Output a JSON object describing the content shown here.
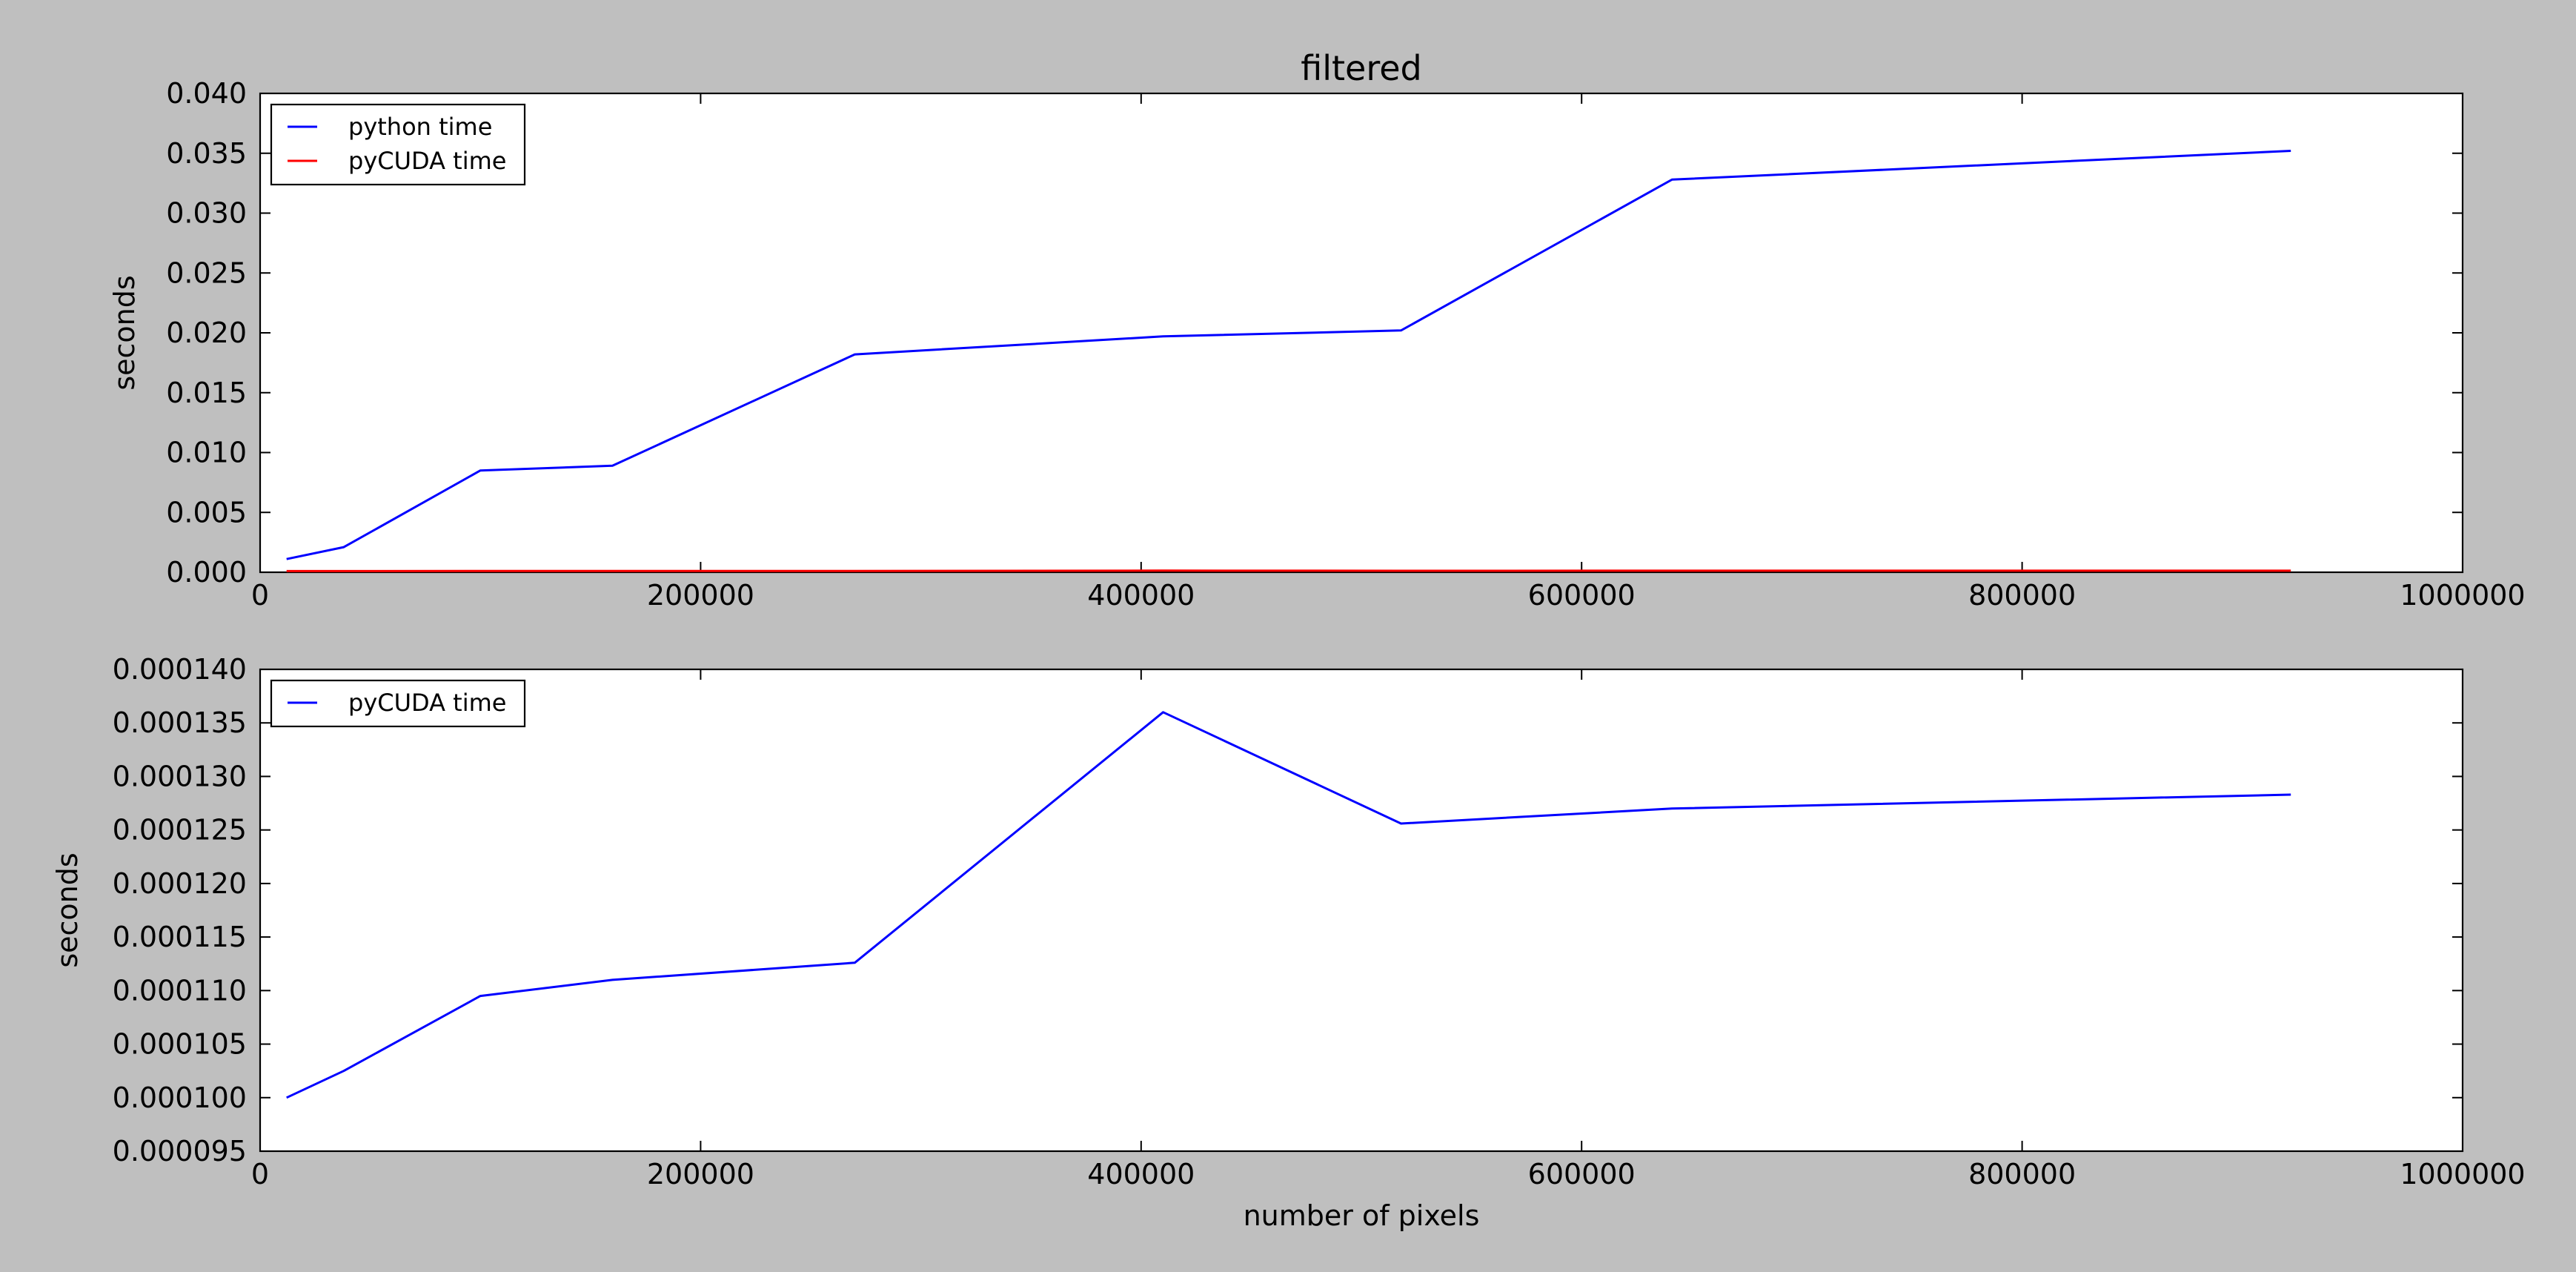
{
  "chart_data": [
    {
      "type": "line",
      "title": "filtered",
      "xlabel": "",
      "ylabel": "seconds",
      "xlim": [
        0,
        1000000
      ],
      "ylim": [
        0,
        0.04
      ],
      "xticks": [
        "0",
        "200000",
        "400000",
        "600000",
        "800000",
        "1000000"
      ],
      "yticks": [
        "0.000",
        "0.005",
        "0.010",
        "0.015",
        "0.020",
        "0.025",
        "0.030",
        "0.035",
        "0.040"
      ],
      "legend_position": "upper-left",
      "series": [
        {
          "name": "python time",
          "color": "#0000ff",
          "x": [
            12000,
            38000,
            100000,
            160000,
            270000,
            410000,
            518000,
            641000,
            922000
          ],
          "y": [
            0.0011,
            0.0021,
            0.0085,
            0.0089,
            0.0182,
            0.0197,
            0.0202,
            0.0328,
            0.0352
          ]
        },
        {
          "name": "pyCUDA time",
          "color": "#ff0000",
          "x": [
            12000,
            38000,
            100000,
            160000,
            270000,
            410000,
            518000,
            641000,
            922000
          ],
          "y": [
            0.0001,
            0.000102,
            0.00011,
            0.000111,
            0.000113,
            0.000136,
            0.000126,
            0.000127,
            0.000128
          ]
        }
      ]
    },
    {
      "type": "line",
      "title": "",
      "xlabel": "number of pixels",
      "ylabel": "seconds",
      "xlim": [
        0,
        1000000
      ],
      "ylim": [
        9.5e-05,
        0.00014
      ],
      "xticks": [
        "0",
        "200000",
        "400000",
        "600000",
        "800000",
        "1000000"
      ],
      "yticks": [
        "0.000095",
        "0.000100",
        "0.000105",
        "0.000110",
        "0.000115",
        "0.000120",
        "0.000125",
        "0.000130",
        "0.000135",
        "0.000140"
      ],
      "legend_position": "upper-left",
      "series": [
        {
          "name": "pyCUDA time",
          "color": "#0000ff",
          "x": [
            12000,
            38000,
            100000,
            160000,
            270000,
            410000,
            518000,
            641000,
            922000
          ],
          "y": [
            0.0001,
            0.0001025,
            0.0001095,
            0.000111,
            0.0001126,
            0.000136,
            0.0001256,
            0.000127,
            0.0001283
          ]
        }
      ]
    }
  ]
}
